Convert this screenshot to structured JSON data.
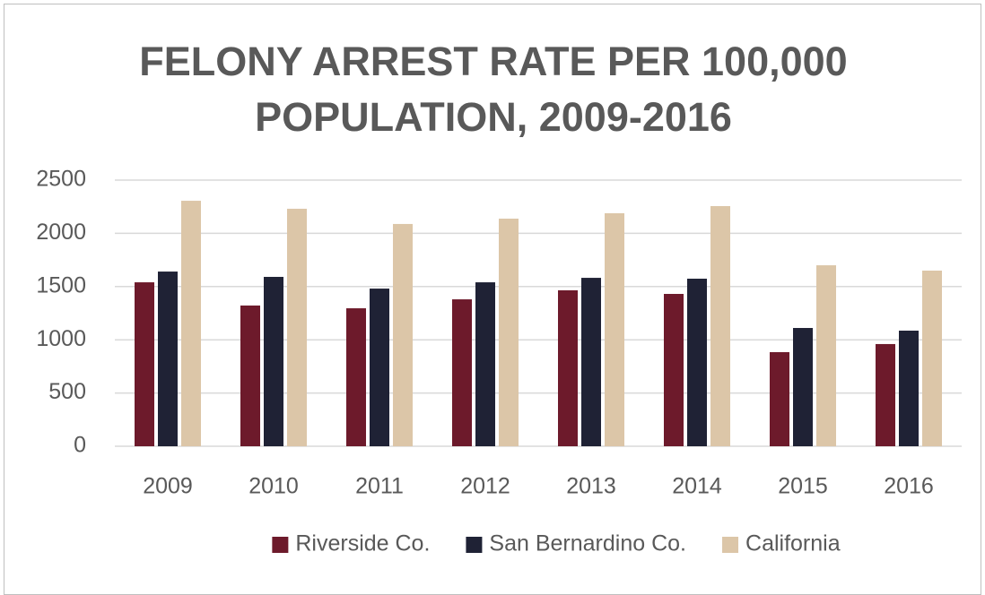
{
  "chart_data": {
    "type": "bar",
    "title": "FELONY ARREST RATE PER 100,000 POPULATION, 2009-2016",
    "categories": [
      "2009",
      "2010",
      "2011",
      "2012",
      "2013",
      "2014",
      "2015",
      "2016"
    ],
    "series": [
      {
        "name": "Riverside Co.",
        "color": "#6d1a2b",
        "values": [
          1540,
          1322,
          1296,
          1380,
          1465,
          1431,
          884,
          960
        ]
      },
      {
        "name": "San Bernardino Co.",
        "color": "#1f2235",
        "values": [
          1641,
          1591,
          1481,
          1540,
          1582,
          1574,
          1111,
          1086
        ]
      },
      {
        "name": "California",
        "color": "#dcc6a8",
        "values": [
          2306,
          2231,
          2088,
          2138,
          2189,
          2256,
          1700,
          1650
        ]
      }
    ],
    "ylim": [
      0,
      2500
    ],
    "yticks": [
      0,
      500,
      1000,
      1500,
      2000,
      2500
    ],
    "grid": true,
    "legend": "bottom"
  }
}
